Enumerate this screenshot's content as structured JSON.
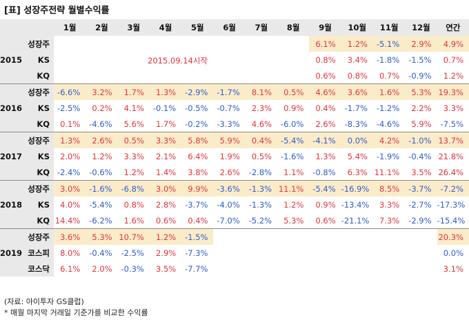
{
  "title": "[표] 성장주전략 월별수익률",
  "columns": [
    "1월",
    "2월",
    "3월",
    "4월",
    "5월",
    "6월",
    "7월",
    "8월",
    "9월",
    "10월",
    "11월",
    "12월",
    "연간"
  ],
  "start_note": "2015.09.14시작",
  "groups": [
    {
      "year": "2015",
      "rows": [
        {
          "label": "성장주",
          "values": [
            "",
            "",
            "",
            "",
            "",
            "",
            "",
            "",
            "6.1%",
            "1.2%",
            "-5.1%",
            "2.9%",
            "4.9%"
          ]
        },
        {
          "label": "KS",
          "values": [
            "",
            "",
            "",
            "",
            "",
            "",
            "",
            "",
            "0.8%",
            "3.4%",
            "-1.8%",
            "-1.5%",
            "0.7%"
          ]
        },
        {
          "label": "KQ",
          "values": [
            "",
            "",
            "",
            "",
            "",
            "",
            "",
            "",
            "0.6%",
            "0.8%",
            "0.7%",
            "-0.9%",
            "1.2%"
          ]
        }
      ]
    },
    {
      "year": "2016",
      "rows": [
        {
          "label": "성장주",
          "values": [
            "-6.6%",
            "3.2%",
            "1.7%",
            "1.3%",
            "-2.9%",
            "-1.7%",
            "8.1%",
            "0.5%",
            "4.6%",
            "3.6%",
            "1.6%",
            "5.3%",
            "19.3%"
          ]
        },
        {
          "label": "KS",
          "values": [
            "-2.5%",
            "0.2%",
            "4.1%",
            "-0.1%",
            "-0.5%",
            "-0.7%",
            "2.3%",
            "0.9%",
            "0.4%",
            "-1.7%",
            "-1.2%",
            "2.2%",
            "3.3%"
          ]
        },
        {
          "label": "KQ",
          "values": [
            "0.1%",
            "-4.6%",
            "5.6%",
            "1.7%",
            "-0.2%",
            "-3.3%",
            "4.6%",
            "-6.0%",
            "2.6%",
            "-8.3%",
            "-4.6%",
            "5.9%",
            "-7.5%"
          ]
        }
      ]
    },
    {
      "year": "2017",
      "rows": [
        {
          "label": "성장주",
          "values": [
            "1.3%",
            "2.6%",
            "0.5%",
            "3.3%",
            "5.8%",
            "5.9%",
            "0.4%",
            "-5.4%",
            "-4.1%",
            "0.0%",
            "4.2%",
            "-1.0%",
            "13.7%"
          ]
        },
        {
          "label": "KS",
          "values": [
            "2.0%",
            "1.2%",
            "3.3%",
            "2.1%",
            "6.4%",
            "1.9%",
            "0.5%",
            "-1.6%",
            "1.3%",
            "5.4%",
            "-1.9%",
            "-0.4%",
            "21.8%"
          ]
        },
        {
          "label": "KQ",
          "values": [
            "-2.4%",
            "-0.6%",
            "1.2%",
            "1.4%",
            "3.8%",
            "2.6%",
            "-2.8%",
            "1.1%",
            "-0.8%",
            "6.3%",
            "11.1%",
            "3.5%",
            "26.4%"
          ]
        }
      ]
    },
    {
      "year": "2018",
      "rows": [
        {
          "label": "성장주",
          "values": [
            "3.0%",
            "-1.6%",
            "-6.8%",
            "3.0%",
            "9.9%",
            "-3.6%",
            "-1.3%",
            "11.1%",
            "-5.4%",
            "-16.9%",
            "8.5%",
            "-3.7%",
            "-7.2%"
          ]
        },
        {
          "label": "KS",
          "values": [
            "4.0%",
            "-5.4%",
            "0.8%",
            "2.8%",
            "-3.7%",
            "-4.0%",
            "-1.3%",
            "1.2%",
            "0.9%",
            "-13.4%",
            "3.3%",
            "-2.7%",
            "-17.3%"
          ]
        },
        {
          "label": "KQ",
          "values": [
            "14.4%",
            "-6.2%",
            "1.6%",
            "0.6%",
            "0.4%",
            "-7.0%",
            "-5.2%",
            "5.3%",
            "0.6%",
            "-21.1%",
            "7.3%",
            "-2.9%",
            "-15.4%"
          ]
        }
      ]
    },
    {
      "year": "2019",
      "rows": [
        {
          "label": "성장주",
          "values": [
            "3.6%",
            "5.3%",
            "10.7%",
            "1.2%",
            "-1.5%",
            "",
            "",
            "",
            "",
            "",
            "",
            "",
            "20.3%"
          ]
        },
        {
          "label": "코스피",
          "values": [
            "8.0%",
            "-0.4%",
            "-2.5%",
            "2.9%",
            "-7.3%",
            "",
            "",
            "",
            "",
            "",
            "",
            "",
            "0.0%"
          ]
        },
        {
          "label": "코스닥",
          "values": [
            "6.1%",
            "2.0%",
            "-0.3%",
            "3.5%",
            "-7.7%",
            "",
            "",
            "",
            "",
            "",
            "",
            "",
            "3.1%"
          ]
        }
      ]
    }
  ],
  "notes": [
    "(자료: 아이투자 GS클럽)",
    "* 매월 마지막 거래일 기준가를 비교한 수익률"
  ],
  "colors": {
    "positive": "#e8323c",
    "negative": "#2f5bd3",
    "highlight": "#fbecc9",
    "header_bg": "#e9e9e9"
  }
}
